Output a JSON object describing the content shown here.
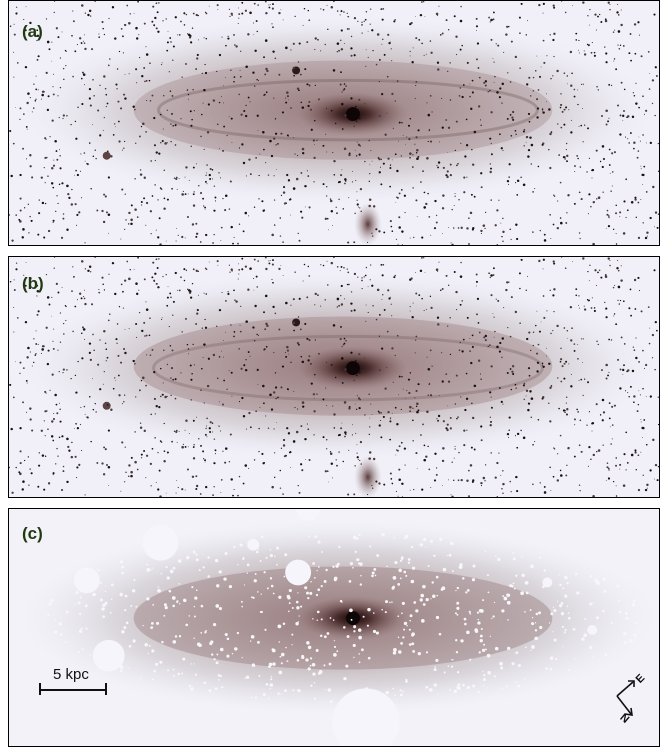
{
  "panels": [
    {
      "label": "(a)"
    },
    {
      "label": "(b)"
    },
    {
      "label": "(c)"
    }
  ],
  "scalebar": {
    "text": "5 kpc"
  },
  "compass": {
    "east": "E",
    "north": "N"
  }
}
